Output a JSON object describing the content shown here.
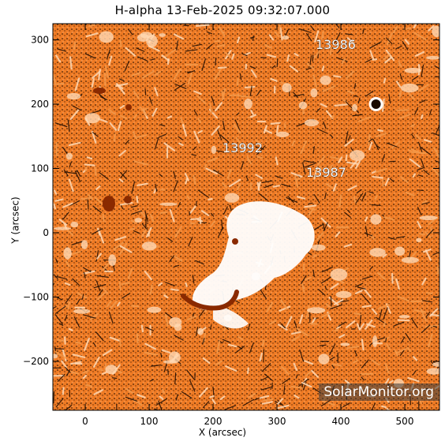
{
  "title": "H-alpha 13-Feb-2025 09:32:07.000",
  "x_label": "X (arcsec)",
  "y_label": "Y (arcsec)",
  "x_ticks": [
    "0",
    "100",
    "200",
    "300",
    "400",
    "500"
  ],
  "y_ticks": [
    "300",
    "200",
    "100",
    "0",
    "−100",
    "−200"
  ],
  "regions": [
    {
      "label": "13986"
    },
    {
      "label": "13992"
    },
    {
      "label": "13987"
    }
  ],
  "watermark": "SolarMonitor.org",
  "colors": {
    "base": "#ef7b24",
    "light": "#ffd8b3",
    "dark": "#1a0a00",
    "spot": "#8a2a00"
  }
}
